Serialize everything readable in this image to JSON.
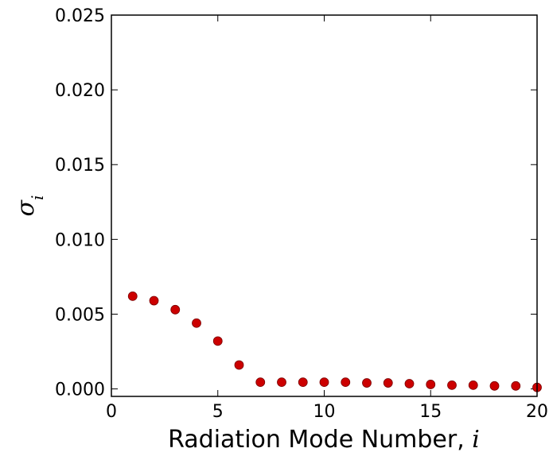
{
  "chart_data": {
    "type": "scatter",
    "xlabel": "Radiation Mode Number, ",
    "xlabel_math": "i",
    "ylabel_symbol": "σ",
    "ylabel_subscript": "i",
    "xlim": [
      0,
      20
    ],
    "ylim": [
      -0.0005,
      0.025
    ],
    "x_ticks": [
      0,
      5,
      10,
      15,
      20
    ],
    "x_tick_labels": [
      "0",
      "5",
      "10",
      "15",
      "20"
    ],
    "y_ticks": [
      0.0,
      0.005,
      0.01,
      0.015,
      0.02,
      0.025
    ],
    "y_tick_labels": [
      "0.000",
      "0.005",
      "0.010",
      "0.015",
      "0.020",
      "0.025"
    ],
    "grid": false,
    "marker_color": "#cc0000",
    "series": [
      {
        "x": [
          1,
          2,
          3,
          4,
          5,
          6,
          7,
          8,
          9,
          10,
          11,
          12,
          13,
          14,
          15,
          16,
          17,
          18,
          19,
          20
        ],
        "values": [
          0.0062,
          0.0059,
          0.0053,
          0.0044,
          0.0032,
          0.0016,
          0.00045,
          0.00045,
          0.00045,
          0.00045,
          0.00045,
          0.0004,
          0.0004,
          0.00035,
          0.0003,
          0.00025,
          0.00025,
          0.0002,
          0.0002,
          0.0001
        ]
      }
    ]
  }
}
